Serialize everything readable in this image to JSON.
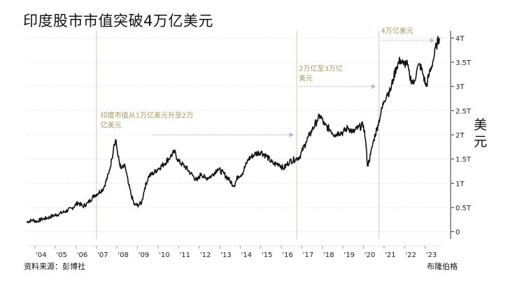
{
  "title": "印度股市市值突破4万亿美元",
  "unit_label": "美元",
  "source": "资料来源：彭博社",
  "brand": "布隆伯格",
  "chart_data": {
    "type": "line",
    "ylim": [
      -0.15,
      4.15
    ],
    "xlim": [
      2003.6,
      2023.8
    ],
    "y_ticks": [
      {
        "v": 0,
        "label": "0"
      },
      {
        "v": 0.5,
        "label": "0.5T"
      },
      {
        "v": 1,
        "label": "1T"
      },
      {
        "v": 1.5,
        "label": "1.5T"
      },
      {
        "v": 2,
        "label": "2T"
      },
      {
        "v": 2.5,
        "label": "2.5T"
      },
      {
        "v": 3,
        "label": "3T"
      },
      {
        "v": 3.5,
        "label": "3.5T"
      },
      {
        "v": 4,
        "label": "4T"
      }
    ],
    "x_ticks": [
      {
        "v": 2004,
        "label": "'04"
      },
      {
        "v": 2005,
        "label": "'05"
      },
      {
        "v": 2006,
        "label": "'06"
      },
      {
        "v": 2007,
        "label": "'07"
      },
      {
        "v": 2008,
        "label": "'08"
      },
      {
        "v": 2009,
        "label": "'09"
      },
      {
        "v": 2010,
        "label": "'10"
      },
      {
        "v": 2011,
        "label": "'11"
      },
      {
        "v": 2012,
        "label": "'12"
      },
      {
        "v": 2013,
        "label": "'13"
      },
      {
        "v": 2014,
        "label": "'14"
      },
      {
        "v": 2015,
        "label": "'15"
      },
      {
        "v": 2016,
        "label": "'16"
      },
      {
        "v": 2017,
        "label": "'17"
      },
      {
        "v": 2018,
        "label": "'18"
      },
      {
        "v": 2019,
        "label": "'19"
      },
      {
        "v": 2020,
        "label": "'20"
      },
      {
        "v": 2021,
        "label": "'21"
      },
      {
        "v": 2022,
        "label": "'22"
      },
      {
        "v": 2023,
        "label": "'23"
      }
    ],
    "markers": [
      2007.0,
      2016.75,
      2020.75
    ],
    "annotations": [
      {
        "lines": [
          "印度市值从1万亿美元升至2万",
          "亿美元"
        ],
        "x": 2007.2,
        "y": 2.35,
        "arrow_from": [
          2009.8,
          2.0
        ],
        "arrow_to": [
          2016.6,
          2.0
        ]
      },
      {
        "lines": [
          "2万亿至3万亿",
          "美元"
        ],
        "x": 2016.85,
        "y": 3.32,
        "arrow_from": [
          2016.85,
          3.0
        ],
        "arrow_to": [
          2020.6,
          3.0
        ]
      },
      {
        "lines": [
          "4万亿美元"
        ],
        "x": 2020.85,
        "y": 4.1,
        "arrow_from": [
          2020.85,
          3.95
        ],
        "arrow_to": [
          2023.45,
          3.95
        ]
      }
    ],
    "series": [
      {
        "points": [
          [
            2003.6,
            0.2
          ],
          [
            2003.9,
            0.24
          ],
          [
            2004.1,
            0.21
          ],
          [
            2004.35,
            0.26
          ],
          [
            2004.6,
            0.28
          ],
          [
            2004.9,
            0.33
          ],
          [
            2005.2,
            0.37
          ],
          [
            2005.5,
            0.42
          ],
          [
            2005.8,
            0.48
          ],
          [
            2006.1,
            0.6
          ],
          [
            2006.35,
            0.52
          ],
          [
            2006.6,
            0.6
          ],
          [
            2006.9,
            0.75
          ],
          [
            2007.1,
            0.8
          ],
          [
            2007.35,
            0.9
          ],
          [
            2007.6,
            1.2
          ],
          [
            2007.75,
            1.5
          ],
          [
            2007.85,
            1.8
          ],
          [
            2007.95,
            1.9
          ],
          [
            2008.05,
            1.55
          ],
          [
            2008.2,
            1.3
          ],
          [
            2008.4,
            1.35
          ],
          [
            2008.55,
            1.0
          ],
          [
            2008.7,
            0.75
          ],
          [
            2008.85,
            0.55
          ],
          [
            2009.05,
            0.55
          ],
          [
            2009.2,
            0.6
          ],
          [
            2009.35,
            0.9
          ],
          [
            2009.55,
            1.15
          ],
          [
            2009.75,
            1.2
          ],
          [
            2010.0,
            1.3
          ],
          [
            2010.3,
            1.4
          ],
          [
            2010.6,
            1.55
          ],
          [
            2010.8,
            1.65
          ],
          [
            2011.0,
            1.45
          ],
          [
            2011.3,
            1.35
          ],
          [
            2011.6,
            1.2
          ],
          [
            2011.9,
            1.05
          ],
          [
            2012.1,
            1.2
          ],
          [
            2012.3,
            1.1
          ],
          [
            2012.6,
            1.15
          ],
          [
            2012.9,
            1.3
          ],
          [
            2013.2,
            1.2
          ],
          [
            2013.5,
            1.05
          ],
          [
            2013.7,
            0.95
          ],
          [
            2013.9,
            1.15
          ],
          [
            2014.1,
            1.2
          ],
          [
            2014.4,
            1.5
          ],
          [
            2014.7,
            1.6
          ],
          [
            2015.0,
            1.65
          ],
          [
            2015.3,
            1.55
          ],
          [
            2015.6,
            1.4
          ],
          [
            2015.9,
            1.4
          ],
          [
            2016.1,
            1.3
          ],
          [
            2016.4,
            1.45
          ],
          [
            2016.7,
            1.5
          ],
          [
            2016.9,
            1.55
          ],
          [
            2017.2,
            1.85
          ],
          [
            2017.5,
            2.1
          ],
          [
            2017.75,
            2.3
          ],
          [
            2017.9,
            2.4
          ],
          [
            2018.1,
            2.2
          ],
          [
            2018.4,
            2.1
          ],
          [
            2018.6,
            2.0
          ],
          [
            2018.8,
            2.05
          ],
          [
            2019.0,
            2.05
          ],
          [
            2019.25,
            2.15
          ],
          [
            2019.5,
            2.05
          ],
          [
            2019.75,
            2.15
          ],
          [
            2020.0,
            2.2
          ],
          [
            2020.1,
            1.9
          ],
          [
            2020.2,
            1.35
          ],
          [
            2020.35,
            1.6
          ],
          [
            2020.5,
            1.9
          ],
          [
            2020.7,
            2.2
          ],
          [
            2020.85,
            2.45
          ],
          [
            2021.0,
            2.7
          ],
          [
            2021.15,
            2.85
          ],
          [
            2021.3,
            2.9
          ],
          [
            2021.45,
            3.15
          ],
          [
            2021.6,
            3.4
          ],
          [
            2021.8,
            3.55
          ],
          [
            2021.95,
            3.45
          ],
          [
            2022.1,
            3.5
          ],
          [
            2022.25,
            3.2
          ],
          [
            2022.45,
            3.05
          ],
          [
            2022.6,
            3.35
          ],
          [
            2022.75,
            3.45
          ],
          [
            2022.9,
            3.25
          ],
          [
            2023.05,
            3.0
          ],
          [
            2023.2,
            3.25
          ],
          [
            2023.4,
            3.55
          ],
          [
            2023.55,
            3.85
          ],
          [
            2023.7,
            4.0
          ]
        ]
      }
    ]
  }
}
